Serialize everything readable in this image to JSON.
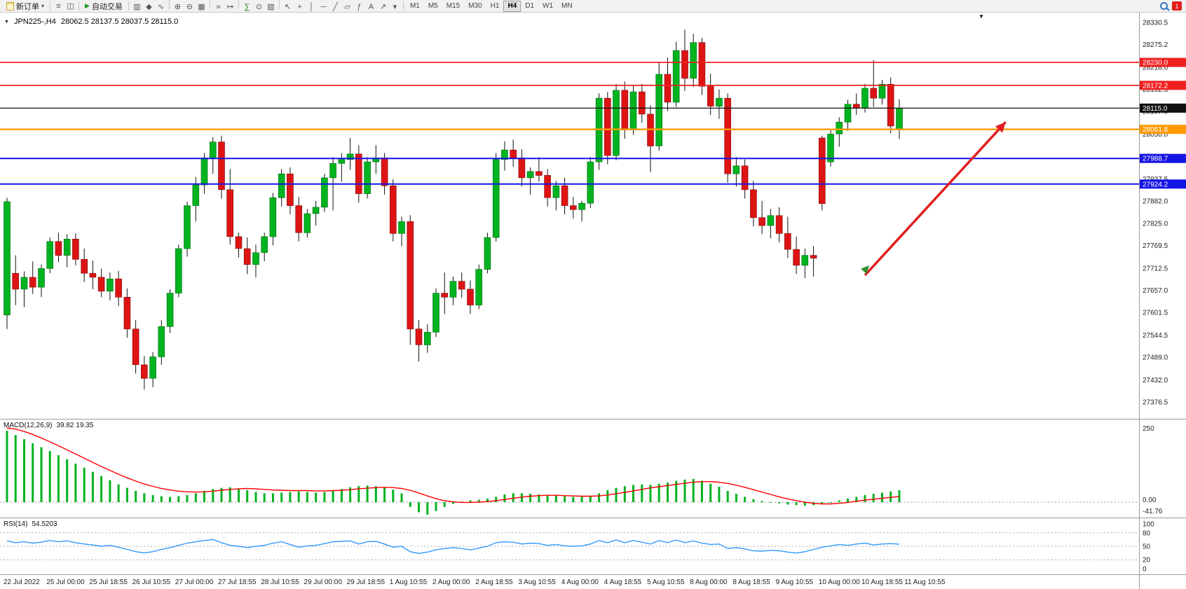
{
  "toolbar": {
    "new_order_label": "新订单",
    "caret_glyph": "▾",
    "autotrade_label": "自动交易",
    "play_glyph": "▶",
    "notification_count": "1",
    "icons_left": [
      {
        "name": "market-watch-icon",
        "glyph": "≡"
      },
      {
        "name": "data-window-icon",
        "glyph": "◫"
      }
    ],
    "icon_groups": [
      [
        {
          "name": "bar-chart-icon",
          "glyph": "▥"
        },
        {
          "name": "candlestick-chart-icon",
          "glyph": "◆"
        },
        {
          "name": "line-chart-icon",
          "glyph": "∿"
        }
      ],
      [
        {
          "name": "zoom-in-icon",
          "glyph": "⊕"
        },
        {
          "name": "zoom-out-icon",
          "glyph": "⊖"
        },
        {
          "name": "tile-windows-icon",
          "glyph": "▦"
        }
      ],
      [
        {
          "name": "autoscroll-icon",
          "glyph": "»"
        },
        {
          "name": "chart-shift-icon",
          "glyph": "↦"
        }
      ],
      [
        {
          "name": "indicators-icon",
          "glyph": "∑",
          "color": "#1a7a1a"
        },
        {
          "name": "periods-icon",
          "glyph": "⊙"
        },
        {
          "name": "templates-icon",
          "glyph": "▧"
        }
      ],
      [
        {
          "name": "cursor-icon",
          "glyph": "↖"
        },
        {
          "name": "crosshair-icon",
          "glyph": "+"
        },
        {
          "name": "vertical-line-icon",
          "glyph": "│"
        },
        {
          "name": "horizontal-line-icon",
          "glyph": "─"
        },
        {
          "name": "trendline-icon",
          "glyph": "╱"
        },
        {
          "name": "channel-icon",
          "glyph": "▱"
        },
        {
          "name": "fibonacci-icon",
          "glyph": "ƒ"
        },
        {
          "name": "text-icon",
          "glyph": "A"
        },
        {
          "name": "arrows-icon",
          "glyph": "↗"
        },
        {
          "name": "shapes-dropdown-icon",
          "glyph": "▾"
        }
      ]
    ],
    "timeframes": [
      "M1",
      "M5",
      "M15",
      "M30",
      "H1",
      "H4",
      "D1",
      "W1",
      "MN"
    ],
    "active_timeframe": "H4"
  },
  "chart": {
    "collapse_glyph": "▼",
    "shift_marker_glyph": "▼",
    "title": "JPN225-,H4",
    "ohlc_text": "28062.5 28137.5 28037.5 28115.0",
    "price_axis_labels": [
      "28330.5",
      "28275.2",
      "28218.0",
      "28162.5",
      "28107.0",
      "28050.0",
      "27994.5",
      "27937.5",
      "27882.0",
      "27825.0",
      "27769.5",
      "27712.5",
      "27657.0",
      "27601.5",
      "27544.5",
      "27489.0",
      "27432.0",
      "27376.5"
    ],
    "price_levels": [
      {
        "price": 28230.0,
        "label": "28230.0",
        "color": "#f02020",
        "width": 1.8
      },
      {
        "price": 28172.2,
        "label": "28172.2",
        "color": "#f02020",
        "width": 1.8
      },
      {
        "price": 28115.0,
        "label": "28115.0",
        "color": "#111111",
        "width": 1.2
      },
      {
        "price": 28061.8,
        "label": "28061.8",
        "color": "#ff9900",
        "width": 2.4
      },
      {
        "price": 27988.7,
        "label": "27988.7",
        "color": "#1515e6",
        "width": 2.0
      },
      {
        "price": 27924.2,
        "label": "27924.2",
        "color": "#1515e6",
        "width": 2.0
      }
    ]
  },
  "macd": {
    "name": "MACD(12,26,9)",
    "values_text": "39.82 19.35",
    "axis_labels": [
      "250",
      "0.00",
      "-41.76"
    ]
  },
  "rsi": {
    "name": "RSI(14)",
    "value_text": "54.5203",
    "axis_labels": [
      "100",
      "80",
      "50",
      "20",
      "0"
    ],
    "levels": [
      80,
      50,
      20
    ]
  },
  "time_axis": [
    "22 Jul 2022",
    "25 Jul 00:00",
    "25 Jul 18:55",
    "26 Jul 10:55",
    "27 Jul 00:00",
    "27 Jul 18:55",
    "28 Jul 10:55",
    "29 Jul 00:00",
    "29 Jul 18:55",
    "1 Aug 10:55",
    "2 Aug 00:00",
    "2 Aug 18:55",
    "3 Aug 10:55",
    "4 Aug 00:00",
    "4 Aug 18:55",
    "5 Aug 10:55",
    "8 Aug 00:00",
    "8 Aug 18:55",
    "9 Aug 10:55",
    "10 Aug 00:00",
    "10 Aug 18:55",
    "11 Aug 10:55"
  ],
  "colors": {
    "bull": "#00b31f",
    "bear": "#de1414",
    "wick": "#111111",
    "rsi_line": "#3399ff",
    "macd_signal": "#ff0000"
  },
  "chart_data": {
    "type": "candlestick",
    "symbol": "JPN225-",
    "timeframe": "H4",
    "price_range": [
      27376.5,
      28330.5
    ],
    "candles": [
      [
        27595,
        27890,
        27560,
        27880
      ],
      [
        27700,
        27745,
        27620,
        27660
      ],
      [
        27660,
        27705,
        27615,
        27690
      ],
      [
        27690,
        27730,
        27648,
        27665
      ],
      [
        27665,
        27722,
        27640,
        27712
      ],
      [
        27712,
        27790,
        27700,
        27780
      ],
      [
        27780,
        27802,
        27728,
        27745
      ],
      [
        27745,
        27798,
        27715,
        27786
      ],
      [
        27786,
        27800,
        27720,
        27735
      ],
      [
        27735,
        27762,
        27678,
        27700
      ],
      [
        27700,
        27732,
        27660,
        27690
      ],
      [
        27690,
        27712,
        27640,
        27655
      ],
      [
        27655,
        27702,
        27632,
        27686
      ],
      [
        27686,
        27706,
        27618,
        27640
      ],
      [
        27640,
        27662,
        27538,
        27560
      ],
      [
        27560,
        27582,
        27448,
        27470
      ],
      [
        27470,
        27492,
        27408,
        27436
      ],
      [
        27436,
        27502,
        27414,
        27490
      ],
      [
        27490,
        27582,
        27470,
        27566
      ],
      [
        27566,
        27660,
        27550,
        27650
      ],
      [
        27650,
        27772,
        27640,
        27762
      ],
      [
        27762,
        27880,
        27742,
        27870
      ],
      [
        27870,
        27942,
        27830,
        27922
      ],
      [
        27922,
        28002,
        27900,
        27990
      ],
      [
        27990,
        28042,
        27950,
        28030
      ],
      [
        28030,
        28046,
        27888,
        27910
      ],
      [
        27910,
        27962,
        27772,
        27792
      ],
      [
        27792,
        27802,
        27740,
        27762
      ],
      [
        27762,
        27790,
        27698,
        27722
      ],
      [
        27722,
        27772,
        27690,
        27752
      ],
      [
        27752,
        27802,
        27730,
        27792
      ],
      [
        27792,
        27902,
        27770,
        27890
      ],
      [
        27890,
        27962,
        27868,
        27950
      ],
      [
        27950,
        27966,
        27848,
        27870
      ],
      [
        27870,
        27892,
        27780,
        27802
      ],
      [
        27802,
        27862,
        27790,
        27850
      ],
      [
        27850,
        27882,
        27820,
        27866
      ],
      [
        27866,
        27950,
        27854,
        27940
      ],
      [
        27940,
        27992,
        27858,
        27976
      ],
      [
        27976,
        28002,
        27930,
        27986
      ],
      [
        27986,
        28040,
        27960,
        28000
      ],
      [
        28000,
        28022,
        27878,
        27900
      ],
      [
        27900,
        27992,
        27888,
        27980
      ],
      [
        27980,
        28022,
        27950,
        27990
      ],
      [
        27990,
        28002,
        27898,
        27920
      ],
      [
        27920,
        27936,
        27780,
        27800
      ],
      [
        27800,
        27842,
        27768,
        27830
      ],
      [
        27830,
        27846,
        27520,
        27560
      ],
      [
        27560,
        27582,
        27478,
        27520
      ],
      [
        27520,
        27572,
        27500,
        27552
      ],
      [
        27552,
        27662,
        27540,
        27650
      ],
      [
        27650,
        27702,
        27598,
        27640
      ],
      [
        27640,
        27692,
        27620,
        27680
      ],
      [
        27680,
        27702,
        27638,
        27660
      ],
      [
        27660,
        27682,
        27598,
        27620
      ],
      [
        27620,
        27722,
        27610,
        27710
      ],
      [
        27710,
        27802,
        27700,
        27790
      ],
      [
        27790,
        28002,
        27780,
        27986
      ],
      [
        27986,
        28032,
        27958,
        28010
      ],
      [
        28010,
        28036,
        27968,
        27990
      ],
      [
        27990,
        28012,
        27918,
        27940
      ],
      [
        27940,
        27966,
        27898,
        27956
      ],
      [
        27956,
        27992,
        27930,
        27946
      ],
      [
        27946,
        27962,
        27868,
        27890
      ],
      [
        27890,
        27932,
        27858,
        27920
      ],
      [
        27920,
        27940,
        27848,
        27870
      ],
      [
        27870,
        27892,
        27838,
        27860
      ],
      [
        27860,
        27882,
        27830,
        27876
      ],
      [
        27876,
        27992,
        27864,
        27980
      ],
      [
        27980,
        28152,
        27960,
        28140
      ],
      [
        28140,
        28156,
        27974,
        27996
      ],
      [
        27996,
        28176,
        27984,
        28160
      ],
      [
        28160,
        28182,
        28038,
        28060
      ],
      [
        28060,
        28172,
        28048,
        28156
      ],
      [
        28156,
        28176,
        28078,
        28100
      ],
      [
        28100,
        28122,
        27954,
        28020
      ],
      [
        28020,
        28232,
        28008,
        28200
      ],
      [
        28200,
        28242,
        28108,
        28130
      ],
      [
        28130,
        28282,
        28118,
        28260
      ],
      [
        28260,
        28312,
        28158,
        28190
      ],
      [
        28190,
        28302,
        28168,
        28280
      ],
      [
        28280,
        28292,
        28148,
        28170
      ],
      [
        28170,
        28202,
        28098,
        28120
      ],
      [
        28120,
        28162,
        28088,
        28140
      ],
      [
        28140,
        28152,
        27928,
        27950
      ],
      [
        27950,
        27992,
        27918,
        27970
      ],
      [
        27970,
        27986,
        27888,
        27910
      ],
      [
        27910,
        27932,
        27818,
        27840
      ],
      [
        27840,
        27882,
        27798,
        27820
      ],
      [
        27820,
        27862,
        27788,
        27845
      ],
      [
        27845,
        27866,
        27778,
        27800
      ],
      [
        27800,
        27842,
        27738,
        27760
      ],
      [
        27760,
        27792,
        27698,
        27720
      ],
      [
        27720,
        27762,
        27688,
        27745
      ],
      [
        27745,
        27768,
        27692,
        27738
      ],
      [
        28040,
        28046,
        27858,
        27875
      ],
      [
        27980,
        28062,
        27968,
        28050
      ],
      [
        28050,
        28092,
        28018,
        28080
      ],
      [
        28080,
        28136,
        28058,
        28125
      ],
      [
        28125,
        28152,
        28098,
        28115
      ],
      [
        28115,
        28176,
        28104,
        28165
      ],
      [
        28165,
        28236,
        28118,
        28140
      ],
      [
        28140,
        28186,
        28124,
        28175
      ],
      [
        28175,
        28192,
        28052,
        28070
      ],
      [
        28062.5,
        28137.5,
        28037.5,
        28115.0
      ]
    ],
    "macd_histogram": [
      240,
      226,
      212,
      198,
      185,
      172,
      158,
      144,
      130,
      116,
      102,
      88,
      74,
      60,
      48,
      38,
      30,
      24,
      20,
      18,
      20,
      24,
      30,
      38,
      44,
      48,
      50,
      46,
      40,
      34,
      30,
      30,
      32,
      34,
      36,
      34,
      32,
      34,
      38,
      44,
      50,
      54,
      56,
      54,
      50,
      42,
      30,
      -16,
      -34,
      -42,
      -30,
      -16,
      -6,
      2,
      6,
      8,
      12,
      18,
      26,
      30,
      30,
      28,
      26,
      24,
      22,
      20,
      18,
      18,
      22,
      30,
      40,
      48,
      54,
      58,
      60,
      58,
      62,
      66,
      72,
      76,
      78,
      72,
      62,
      52,
      38,
      28,
      18,
      10,
      4,
      0,
      -4,
      -8,
      -10,
      -12,
      -10,
      -6,
      0,
      6,
      12,
      18,
      24,
      28,
      32,
      36,
      40
    ],
    "macd_signal": [
      250,
      246,
      238,
      228,
      216,
      203,
      190,
      176,
      162,
      148,
      134,
      120,
      107,
      94,
      82,
      71,
      61,
      53,
      46,
      41,
      37,
      35,
      34,
      35,
      37,
      40,
      43,
      45,
      46,
      45,
      43,
      41,
      40,
      39,
      39,
      39,
      38,
      38,
      39,
      40,
      42,
      45,
      47,
      49,
      50,
      49,
      46,
      40,
      31,
      21,
      12,
      5,
      1,
      -1,
      -1,
      0,
      2,
      5,
      9,
      13,
      17,
      20,
      22,
      23,
      23,
      22,
      21,
      20,
      20,
      21,
      24,
      28,
      33,
      38,
      43,
      48,
      52,
      56,
      60,
      64,
      67,
      69,
      69,
      67,
      63,
      57,
      50,
      42,
      34,
      26,
      18,
      11,
      5,
      0,
      -4,
      -6,
      -6,
      -4,
      -1,
      3,
      7,
      10,
      13,
      16,
      19
    ],
    "rsi_values": [
      62,
      58,
      60,
      57,
      59,
      63,
      60,
      62,
      58,
      55,
      53,
      50,
      52,
      48,
      43,
      38,
      35,
      38,
      43,
      47,
      52,
      57,
      60,
      63,
      65,
      58,
      52,
      50,
      47,
      50,
      52,
      57,
      60,
      54,
      48,
      51,
      52,
      56,
      60,
      61,
      62,
      55,
      60,
      61,
      55,
      48,
      50,
      38,
      34,
      37,
      42,
      45,
      47,
      45,
      42,
      46,
      50,
      58,
      60,
      59,
      55,
      57,
      56,
      52,
      54,
      51,
      50,
      51,
      55,
      63,
      58,
      64,
      58,
      63,
      59,
      55,
      63,
      58,
      64,
      58,
      62,
      57,
      54,
      55,
      45,
      47,
      44,
      40,
      39,
      41,
      40,
      37,
      35,
      38,
      43,
      48,
      51,
      54,
      52,
      55,
      57,
      53,
      55,
      56,
      54.5
    ],
    "trend_arrow": {
      "from_index": 100,
      "from_price": 27695,
      "to_index": 116.4,
      "to_price": 28080,
      "color": "#e02020"
    },
    "start_marker": {
      "x_index": 100.5,
      "price": 27720,
      "color": "#2f8f2f"
    }
  }
}
